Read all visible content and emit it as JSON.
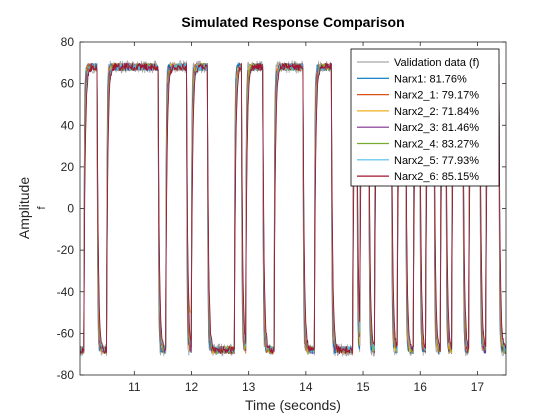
{
  "colors": {
    "axis": "#262626",
    "background": "#ffffff",
    "legend_border": "#000000"
  },
  "chart_data": {
    "type": "line",
    "title": "Simulated Response Comparison",
    "xlabel": "Time (seconds)",
    "ylabel": "Amplitude",
    "ylabel_sub": "f",
    "xlim": [
      10.05,
      17.5
    ],
    "ylim": [
      -80,
      80
    ],
    "xticks": [
      11,
      12,
      13,
      14,
      15,
      16,
      17
    ],
    "yticks": [
      -80,
      -60,
      -40,
      -20,
      0,
      20,
      40,
      60,
      80
    ],
    "grid": false,
    "legend_position": "top-right",
    "legend": [
      {
        "label": "Validation data (f)",
        "color": "#a6a6a6"
      },
      {
        "label": "Narx1: 81.76%",
        "color": "#0072bd"
      },
      {
        "label": "Narx2_1: 79.17%",
        "color": "#d95319"
      },
      {
        "label": "Narx2_2: 71.84%",
        "color": "#edb120"
      },
      {
        "label": "Narx2_3: 81.46%",
        "color": "#7e2f8e"
      },
      {
        "label": "Narx2_4: 83.27%",
        "color": "#77ac30"
      },
      {
        "label": "Narx2_5: 77.93%",
        "color": "#4dbeee"
      },
      {
        "label": "Narx2_6: 85.15%",
        "color": "#a2142f"
      }
    ],
    "switch_times": [
      10.12,
      10.35,
      10.52,
      11.42,
      11.55,
      11.92,
      12.0,
      12.28,
      12.75,
      12.88,
      12.95,
      13.25,
      13.45,
      13.95,
      14.15,
      14.45,
      14.82,
      14.9,
      14.95,
      15.1,
      15.2,
      15.5,
      15.6,
      15.75,
      15.88,
      16.0,
      16.1,
      16.25,
      16.35,
      16.45,
      16.55,
      16.75,
      16.85,
      17.05,
      17.15,
      17.38
    ],
    "start_level": "low",
    "high_level": 68,
    "low_level": -68,
    "series_note": "signal alternates between about +68 and -68"
  }
}
